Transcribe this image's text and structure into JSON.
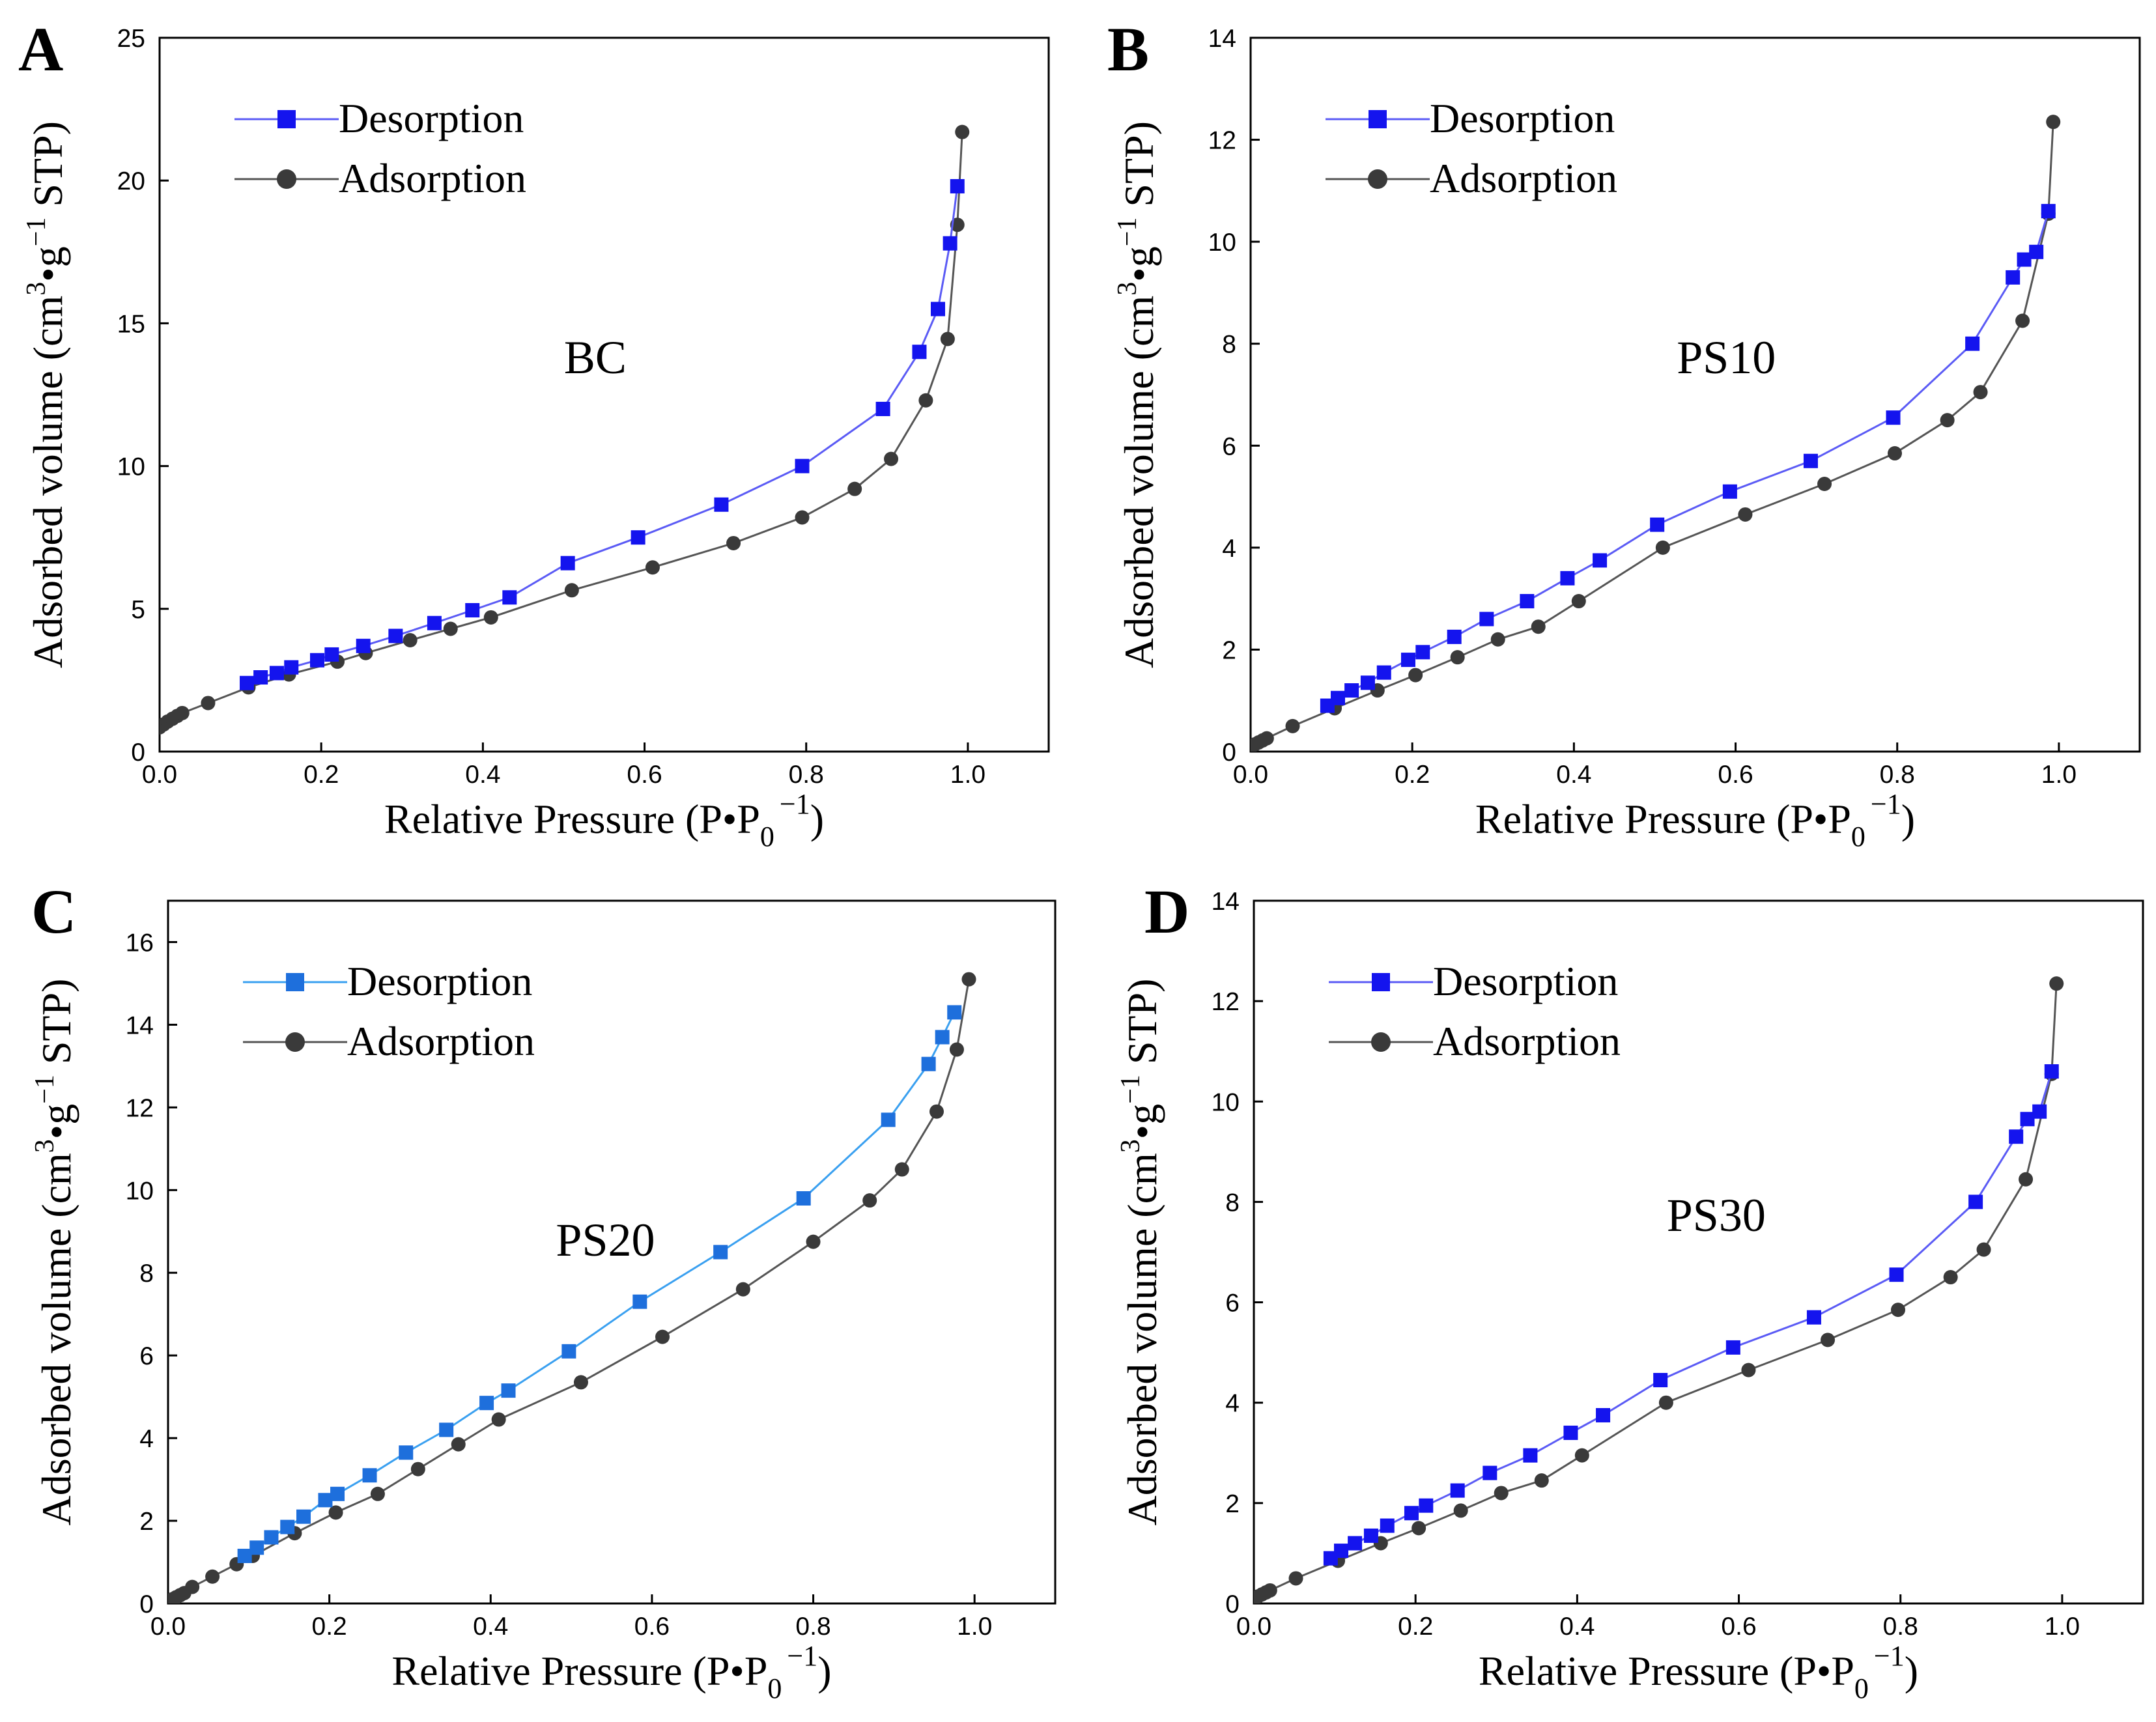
{
  "chart_data": [
    {
      "type": "line",
      "panel_letter": "A",
      "sample_label": "BC",
      "xlabel": "Relative Pressure (P•P",
      "xlabel_sub": "0",
      "xlabel_sup": "−1",
      "xlabel_close": ")",
      "ylabel": "Adsorbed volume (cm",
      "ylabel_sup1": "3",
      "ylabel_mid": "•g",
      "ylabel_sup2": "−1",
      "ylabel_end": " STP)",
      "xlim": [
        0,
        1.1
      ],
      "ylim": [
        0,
        25
      ],
      "xticks": [
        0.0,
        0.2,
        0.4,
        0.6,
        0.8,
        1.0
      ],
      "xtick_labels": [
        "0.0",
        "0.2",
        "0.4",
        "0.6",
        "0.8",
        "1.0"
      ],
      "yticks": [
        0,
        5,
        10,
        15,
        20,
        25
      ],
      "ytick_labels": [
        "0",
        "5",
        "10",
        "15",
        "20",
        "25"
      ],
      "legend_position": "top-left",
      "series": [
        {
          "name": "Desorption",
          "marker": "square",
          "color": "#1414ee",
          "line_color": "#5b5bf5",
          "x": [
            0.108,
            0.125,
            0.145,
            0.163,
            0.195,
            0.213,
            0.252,
            0.292,
            0.34,
            0.387,
            0.433,
            0.505,
            0.592,
            0.695,
            0.795,
            0.895,
            0.94,
            0.963,
            0.978,
            0.987
          ],
          "y": [
            2.4,
            2.6,
            2.75,
            2.95,
            3.2,
            3.4,
            3.7,
            4.05,
            4.5,
            4.95,
            5.4,
            6.6,
            7.5,
            8.65,
            10.0,
            12.0,
            14.0,
            15.5,
            17.8,
            19.8
          ]
        },
        {
          "name": "Adsorption",
          "marker": "circle",
          "color": "#3a3a3a",
          "line_color": "#555555",
          "x": [
            0.0,
            0.005,
            0.01,
            0.016,
            0.022,
            0.028,
            0.06,
            0.11,
            0.16,
            0.22,
            0.255,
            0.31,
            0.36,
            0.41,
            0.51,
            0.61,
            0.71,
            0.795,
            0.86,
            0.905,
            0.948,
            0.975,
            0.987,
            0.993
          ],
          "y": [
            0.85,
            0.95,
            1.05,
            1.15,
            1.25,
            1.35,
            1.7,
            2.25,
            2.7,
            3.15,
            3.45,
            3.9,
            4.3,
            4.7,
            5.65,
            6.45,
            7.3,
            8.2,
            9.2,
            10.25,
            12.3,
            14.45,
            18.45,
            21.7
          ]
        }
      ]
    },
    {
      "type": "line",
      "panel_letter": "B",
      "sample_label": "PS10",
      "xlabel": "Relative Pressure (P•P",
      "xlabel_sub": "0",
      "xlabel_sup": "−1",
      "xlabel_close": ")",
      "ylabel": "Adsorbed volume (cm",
      "ylabel_sup1": "3",
      "ylabel_mid": "•g",
      "ylabel_sup2": "−1",
      "ylabel_end": " STP)",
      "xlim": [
        0,
        1.1
      ],
      "ylim": [
        0,
        14
      ],
      "xticks": [
        0.0,
        0.2,
        0.4,
        0.6,
        0.8,
        1.0
      ],
      "xtick_labels": [
        "0.0",
        "0.2",
        "0.4",
        "0.6",
        "0.8",
        "1.0"
      ],
      "yticks": [
        0,
        2,
        4,
        6,
        8,
        10,
        12,
        14
      ],
      "ytick_labels": [
        "0",
        "2",
        "4",
        "6",
        "8",
        "10",
        "12",
        "14"
      ],
      "legend_position": "top-left",
      "series": [
        {
          "name": "Desorption",
          "marker": "square",
          "color": "#1414ee",
          "line_color": "#5b5bf5",
          "x": [
            0.095,
            0.108,
            0.125,
            0.145,
            0.165,
            0.195,
            0.213,
            0.252,
            0.292,
            0.342,
            0.392,
            0.432,
            0.503,
            0.593,
            0.693,
            0.795,
            0.893,
            0.943,
            0.957,
            0.972,
            0.987
          ],
          "y": [
            0.9,
            1.05,
            1.2,
            1.35,
            1.55,
            1.8,
            1.95,
            2.25,
            2.6,
            2.95,
            3.4,
            3.75,
            4.45,
            5.1,
            5.7,
            6.55,
            8.0,
            9.3,
            9.65,
            9.8,
            10.6
          ]
        },
        {
          "name": "Adsorption",
          "marker": "circle",
          "color": "#3a3a3a",
          "line_color": "#555555",
          "x": [
            0.0,
            0.005,
            0.01,
            0.015,
            0.02,
            0.052,
            0.104,
            0.157,
            0.204,
            0.256,
            0.306,
            0.356,
            0.406,
            0.51,
            0.612,
            0.71,
            0.797,
            0.862,
            0.903,
            0.955,
            0.987,
            0.993
          ],
          "y": [
            0.1,
            0.14,
            0.18,
            0.22,
            0.26,
            0.5,
            0.85,
            1.2,
            1.5,
            1.85,
            2.2,
            2.45,
            2.95,
            4.0,
            4.65,
            5.25,
            5.85,
            6.5,
            7.05,
            8.45,
            10.55,
            12.35
          ]
        }
      ]
    },
    {
      "type": "line",
      "panel_letter": "C",
      "sample_label": "PS20",
      "xlabel": "Relative Pressure (P•P",
      "xlabel_sub": "0",
      "xlabel_sup": "−1",
      "xlabel_close": ")",
      "ylabel": "Adsorbed volume (cm",
      "ylabel_sup1": "3",
      "ylabel_mid": "•g",
      "ylabel_sup2": "−1",
      "ylabel_end": " STP)",
      "xlim": [
        0,
        1.1
      ],
      "ylim": [
        0,
        17
      ],
      "xticks": [
        0.0,
        0.2,
        0.4,
        0.6,
        0.8,
        1.0
      ],
      "xtick_labels": [
        "0.0",
        "0.2",
        "0.4",
        "0.6",
        "0.8",
        "1.0"
      ],
      "yticks": [
        0,
        2,
        4,
        6,
        8,
        10,
        12,
        14,
        16
      ],
      "ytick_labels": [
        "0",
        "2",
        "4",
        "6",
        "8",
        "10",
        "12",
        "14",
        "16"
      ],
      "legend_position": "top-left",
      "series": [
        {
          "name": "Desorption",
          "marker": "square",
          "color": "#1e6fdc",
          "line_color": "#3aa0f0",
          "x": [
            0.095,
            0.11,
            0.128,
            0.148,
            0.168,
            0.195,
            0.21,
            0.25,
            0.295,
            0.345,
            0.395,
            0.422,
            0.497,
            0.585,
            0.685,
            0.788,
            0.893,
            0.943,
            0.96,
            0.975
          ],
          "y": [
            1.15,
            1.35,
            1.6,
            1.85,
            2.1,
            2.5,
            2.65,
            3.1,
            3.65,
            4.2,
            4.85,
            5.15,
            6.1,
            7.3,
            8.5,
            9.8,
            11.7,
            13.05,
            13.7,
            14.3
          ]
        },
        {
          "name": "Adsorption",
          "marker": "circle",
          "color": "#3a3a3a",
          "line_color": "#555555",
          "x": [
            0.0,
            0.005,
            0.01,
            0.015,
            0.02,
            0.03,
            0.055,
            0.085,
            0.105,
            0.157,
            0.208,
            0.26,
            0.31,
            0.36,
            0.41,
            0.512,
            0.613,
            0.713,
            0.8,
            0.87,
            0.91,
            0.953,
            0.978,
            0.993
          ],
          "y": [
            0.05,
            0.1,
            0.15,
            0.2,
            0.25,
            0.4,
            0.65,
            0.95,
            1.15,
            1.7,
            2.2,
            2.65,
            3.25,
            3.85,
            4.45,
            5.35,
            6.45,
            7.6,
            8.75,
            9.75,
            10.5,
            11.9,
            13.4,
            15.1
          ]
        }
      ]
    },
    {
      "type": "line",
      "panel_letter": "D",
      "sample_label": "PS30",
      "xlabel": "Relative Pressure (P•P",
      "xlabel_sub": "0",
      "xlabel_sup": "−1",
      "xlabel_close": ")",
      "ylabel": "Adsorbed volume (cm",
      "ylabel_sup1": "3",
      "ylabel_mid": "•g",
      "ylabel_sup2": "−1",
      "ylabel_end": " STP)",
      "xlim": [
        0,
        1.1
      ],
      "ylim": [
        0,
        14
      ],
      "xticks": [
        0.0,
        0.2,
        0.4,
        0.6,
        0.8,
        1.0
      ],
      "xtick_labels": [
        "0.0",
        "0.2",
        "0.4",
        "0.6",
        "0.8",
        "1.0"
      ],
      "yticks": [
        0,
        2,
        4,
        6,
        8,
        10,
        12,
        14
      ],
      "ytick_labels": [
        "0",
        "2",
        "4",
        "6",
        "8",
        "10",
        "12",
        "14"
      ],
      "legend_position": "top-left",
      "series": [
        {
          "name": "Desorption",
          "marker": "square",
          "color": "#1414ee",
          "line_color": "#5b5bf5",
          "x": [
            0.095,
            0.108,
            0.125,
            0.145,
            0.165,
            0.195,
            0.213,
            0.252,
            0.292,
            0.342,
            0.392,
            0.432,
            0.503,
            0.593,
            0.693,
            0.795,
            0.893,
            0.943,
            0.957,
            0.972,
            0.987
          ],
          "y": [
            0.9,
            1.05,
            1.2,
            1.35,
            1.55,
            1.8,
            1.95,
            2.25,
            2.6,
            2.95,
            3.4,
            3.75,
            4.45,
            5.1,
            5.7,
            6.55,
            8.0,
            9.3,
            9.65,
            9.8,
            10.6
          ]
        },
        {
          "name": "Adsorption",
          "marker": "circle",
          "color": "#3a3a3a",
          "line_color": "#555555",
          "x": [
            0.0,
            0.005,
            0.01,
            0.015,
            0.02,
            0.052,
            0.104,
            0.157,
            0.204,
            0.256,
            0.306,
            0.356,
            0.406,
            0.51,
            0.612,
            0.71,
            0.797,
            0.862,
            0.903,
            0.955,
            0.987,
            0.993
          ],
          "y": [
            0.1,
            0.14,
            0.18,
            0.22,
            0.26,
            0.5,
            0.85,
            1.2,
            1.5,
            1.85,
            2.2,
            2.45,
            2.95,
            4.0,
            4.65,
            5.25,
            5.85,
            6.5,
            7.05,
            8.45,
            10.55,
            12.35
          ]
        }
      ]
    }
  ]
}
